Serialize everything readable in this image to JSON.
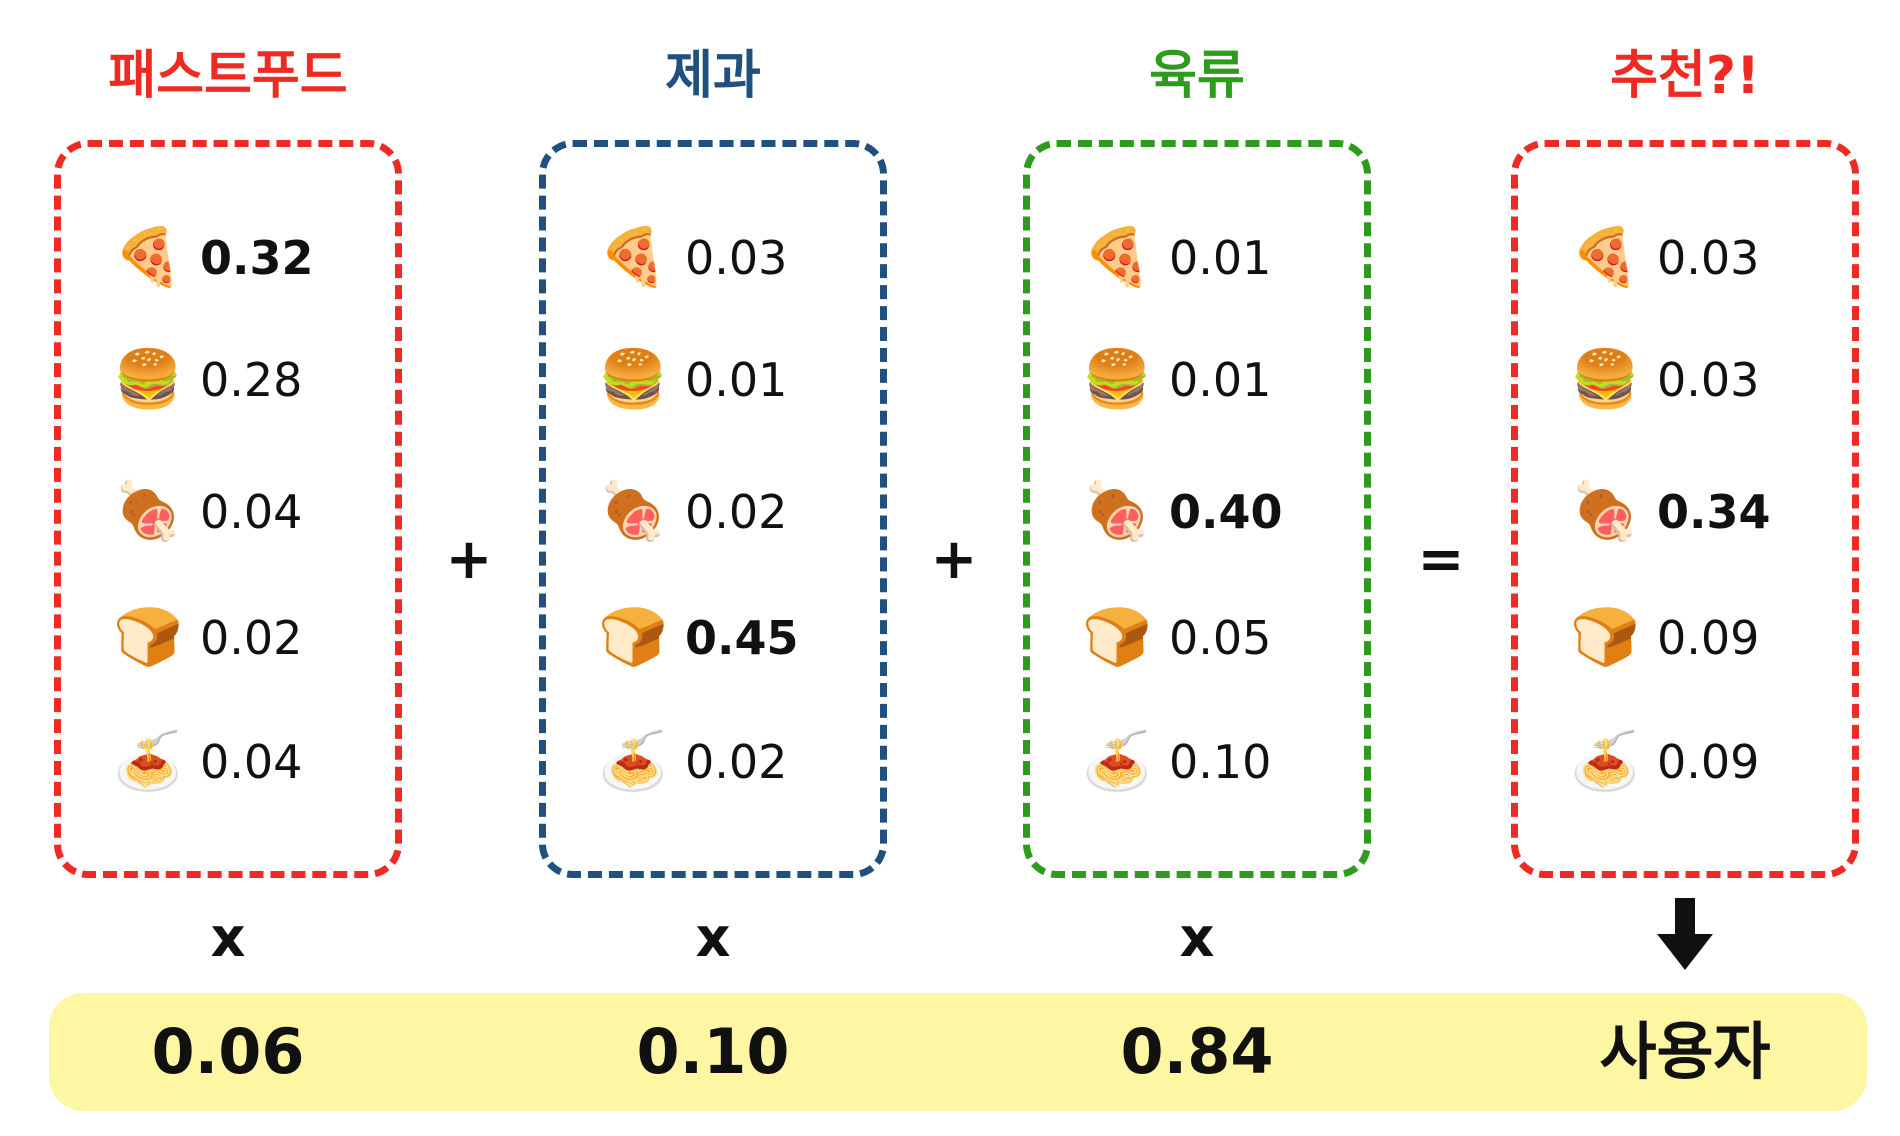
{
  "columns": [
    {
      "title": "패스트푸드",
      "color": "#ee2a22",
      "items": [
        {
          "icon": "🍕",
          "value": "0.32",
          "bold": true
        },
        {
          "icon": "🍔",
          "value": "0.28",
          "bold": false
        },
        {
          "icon": "🍖",
          "value": "0.04",
          "bold": false
        },
        {
          "icon": "🍞",
          "value": "0.02",
          "bold": false
        },
        {
          "icon": "🍝",
          "value": "0.04",
          "bold": false
        }
      ],
      "multiplier": "x",
      "weight": "0.06"
    },
    {
      "title": "제과",
      "color": "#1f5080",
      "items": [
        {
          "icon": "🍕",
          "value": "0.03",
          "bold": false
        },
        {
          "icon": "🍔",
          "value": "0.01",
          "bold": false
        },
        {
          "icon": "🍖",
          "value": "0.02",
          "bold": false
        },
        {
          "icon": "🍞",
          "value": "0.45",
          "bold": true
        },
        {
          "icon": "🍝",
          "value": "0.02",
          "bold": false
        }
      ],
      "multiplier": "x",
      "weight": "0.10"
    },
    {
      "title": "육류",
      "color": "#2e9a1e",
      "items": [
        {
          "icon": "🍕",
          "value": "0.01",
          "bold": false
        },
        {
          "icon": "🍔",
          "value": "0.01",
          "bold": false
        },
        {
          "icon": "🍖",
          "value": "0.40",
          "bold": true
        },
        {
          "icon": "🍞",
          "value": "0.05",
          "bold": false
        },
        {
          "icon": "🍝",
          "value": "0.10",
          "bold": false
        }
      ],
      "multiplier": "x",
      "weight": "0.84"
    },
    {
      "title": "추천?!",
      "color": "#ee2a22",
      "items": [
        {
          "icon": "🍕",
          "value": "0.03",
          "bold": false
        },
        {
          "icon": "🍔",
          "value": "0.03",
          "bold": false
        },
        {
          "icon": "🍖",
          "value": "0.34",
          "bold": true
        },
        {
          "icon": "🍞",
          "value": "0.09",
          "bold": false
        },
        {
          "icon": "🍝",
          "value": "0.09",
          "bold": false
        }
      ],
      "weight": "사용자"
    }
  ],
  "operators": [
    "+",
    "+",
    "="
  ]
}
